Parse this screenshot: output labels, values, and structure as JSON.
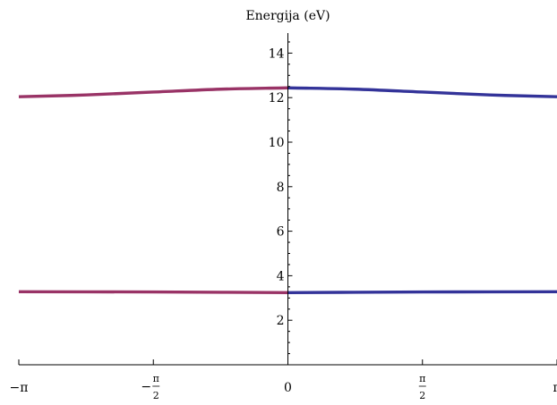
{
  "chart_data": {
    "type": "line",
    "title": "",
    "xlabel": "",
    "ylabel": "Energija (eV)",
    "xlim": [
      -3.14159,
      3.14159
    ],
    "ylim": [
      0,
      15
    ],
    "grid": false,
    "x_ticks": [
      {
        "value": -3.14159,
        "sign": "−",
        "text": "π"
      },
      {
        "value": -1.5708,
        "sign": "−",
        "num": "π",
        "den": "2"
      },
      {
        "value": 0,
        "text": "0"
      },
      {
        "value": 1.5708,
        "num": "π",
        "den": "2"
      },
      {
        "value": 3.14159,
        "text": "π"
      }
    ],
    "y_ticks": [
      {
        "value": 2,
        "label": "2"
      },
      {
        "value": 4,
        "label": "4"
      },
      {
        "value": 6,
        "label": "6"
      },
      {
        "value": 8,
        "label": "8"
      },
      {
        "value": 10,
        "label": "10"
      },
      {
        "value": 12,
        "label": "12"
      },
      {
        "value": 14,
        "label": "14"
      }
    ],
    "series": [
      {
        "color": "#993366",
        "x": [
          -3.14159,
          -2.356,
          -1.5708,
          -0.785,
          0
        ],
        "values": [
          12.04,
          12.12,
          12.25,
          12.38,
          12.44
        ]
      },
      {
        "color": "#333399",
        "x": [
          0,
          0.785,
          1.5708,
          2.356,
          3.14159
        ],
        "values": [
          12.44,
          12.38,
          12.25,
          12.12,
          12.04
        ]
      },
      {
        "color": "#993366",
        "x": [
          -3.14159,
          -1.5708,
          0
        ],
        "values": [
          3.28,
          3.27,
          3.24
        ]
      },
      {
        "color": "#333399",
        "x": [
          0,
          1.5708,
          3.14159
        ],
        "values": [
          3.24,
          3.27,
          3.28
        ]
      }
    ]
  }
}
